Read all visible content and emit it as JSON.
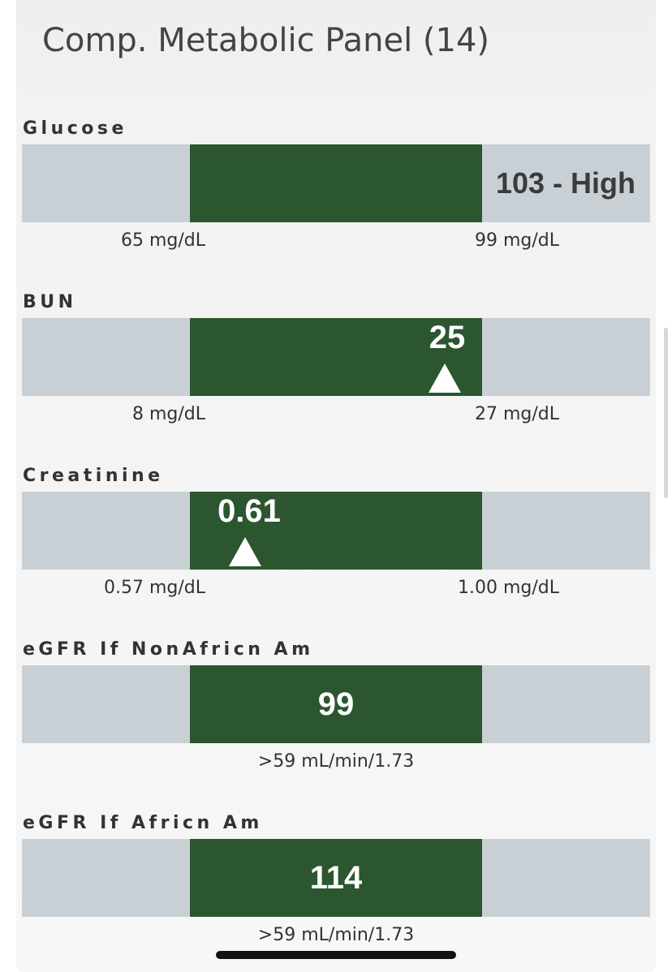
{
  "panel": {
    "title": "Comp. Metabolic Panel (14)"
  },
  "tests": [
    {
      "name": "Glucose",
      "value_label": "103 - High",
      "value": 103,
      "status": "High",
      "low_label": "65 mg/dL",
      "high_label": "99 mg/dL"
    },
    {
      "name": "BUN",
      "value_label": "25",
      "value": 25,
      "low_label": "8 mg/dL",
      "high_label": "27 mg/dL"
    },
    {
      "name": "Creatinine",
      "value_label": "0.61",
      "value": 0.61,
      "low_label": "0.57 mg/dL",
      "high_label": "1.00 mg/dL"
    },
    {
      "name": "eGFR If NonAfricn Am",
      "value_label": "99",
      "value": 99,
      "reference_label": ">59 mL/min/1.73"
    },
    {
      "name": "eGFR If Africn Am",
      "value_label": "114",
      "value": 114,
      "reference_label": ">59 mL/min/1.73"
    }
  ],
  "colors": {
    "in_range": "#2b5630",
    "out_of_range": "#c9d0d5",
    "value_on_range": "#ffffff",
    "value_high": "#3b3b3b"
  }
}
